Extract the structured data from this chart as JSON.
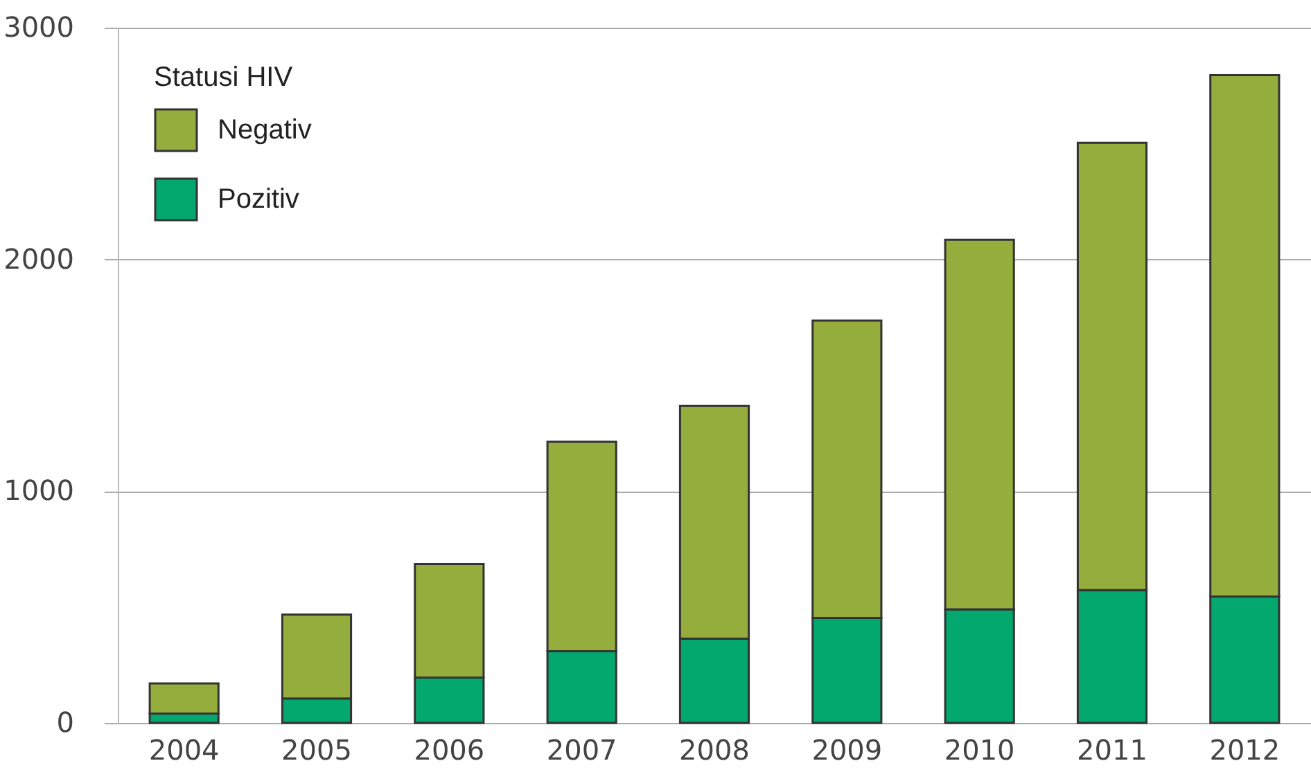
{
  "chart_data": {
    "type": "bar",
    "stacked": true,
    "legend_title": "Statusi HIV",
    "legend": "top left",
    "grid": "y",
    "categories": [
      "2004",
      "2005",
      "2006",
      "2007",
      "2008",
      "2009",
      "2010",
      "2011",
      "2012"
    ],
    "series": [
      {
        "name": "Pozitiv",
        "color": "#02a86e",
        "values": [
          40,
          105,
          196,
          309,
          364,
          453,
          490,
          573,
          545
        ]
      },
      {
        "name": "Negativ",
        "color": "#94ad3c",
        "values": [
          130,
          363,
          490,
          904,
          1004,
          1283,
          1595,
          1930,
          2250
        ]
      }
    ],
    "ylim": [
      0,
      3000
    ],
    "yticks": [
      0,
      1000,
      2000,
      3000
    ]
  }
}
